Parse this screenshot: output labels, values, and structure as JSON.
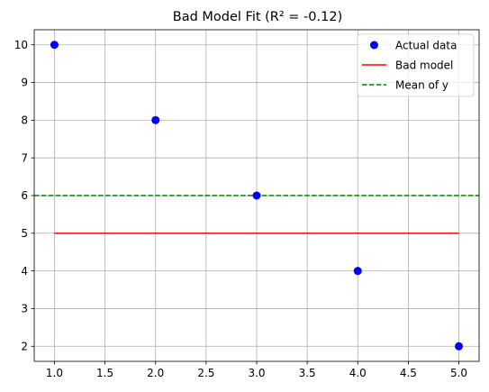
{
  "chart_data": {
    "type": "scatter",
    "title": "Bad Model Fit (R² = -0.12)",
    "xlabel": "",
    "ylabel": "",
    "xlim": [
      0.8,
      5.2
    ],
    "ylim": [
      1.6,
      10.4
    ],
    "xticks": [
      1.0,
      1.5,
      2.0,
      2.5,
      3.0,
      3.5,
      4.0,
      4.5,
      5.0
    ],
    "xtick_labels": [
      "1.0",
      "1.5",
      "2.0",
      "2.5",
      "3.0",
      "3.5",
      "4.0",
      "4.5",
      "5.0"
    ],
    "yticks": [
      2,
      3,
      4,
      5,
      6,
      7,
      8,
      9,
      10
    ],
    "ytick_labels": [
      "2",
      "3",
      "4",
      "5",
      "6",
      "7",
      "8",
      "9",
      "10"
    ],
    "grid": true,
    "legend_position": "top-right",
    "series": [
      {
        "name": "Actual data",
        "kind": "scatter",
        "color": "#0000ff",
        "x": [
          1,
          2,
          3,
          4,
          5
        ],
        "y": [
          10,
          8,
          6,
          4,
          2
        ]
      },
      {
        "name": "Bad model",
        "kind": "line",
        "style": "solid",
        "color": "#ff0000",
        "x": [
          1,
          5
        ],
        "y": [
          5,
          5
        ]
      },
      {
        "name": "Mean of y",
        "kind": "hline",
        "style": "dashed",
        "color": "#008000",
        "y": 6
      }
    ]
  }
}
